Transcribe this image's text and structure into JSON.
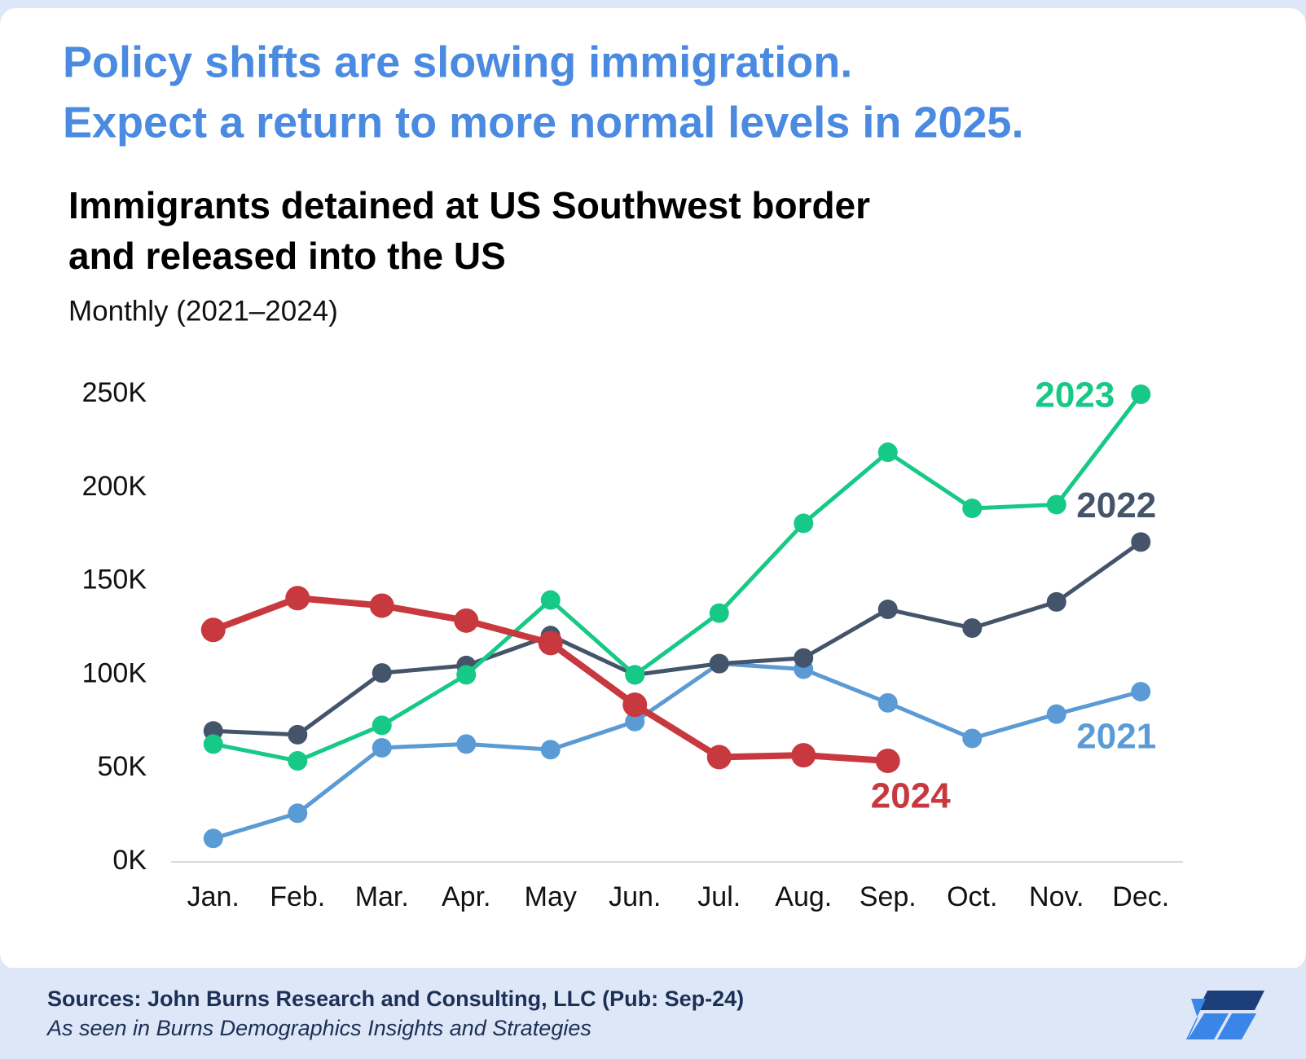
{
  "chart_data": {
    "type": "line",
    "headline": [
      "Policy shifts are slowing immigration.",
      "Expect a return to more normal levels in 2025."
    ],
    "title": [
      "Immigrants detained at US Southwest border",
      "and released into the US"
    ],
    "subtitle": "Monthly (2021–2024)",
    "categories": [
      "Jan.",
      "Feb.",
      "Mar.",
      "Apr.",
      "May",
      "Jun.",
      "Jul.",
      "Aug.",
      "Sep.",
      "Oct.",
      "Nov.",
      "Dec."
    ],
    "series": [
      {
        "name": "2021",
        "color": "#5b9bd5",
        "values": [
          12.5,
          26,
          61,
          63,
          60,
          75,
          106,
          103,
          85,
          66,
          79,
          91
        ]
      },
      {
        "name": "2022",
        "color": "#44546a",
        "values": [
          70,
          68,
          101,
          105,
          121,
          100,
          106,
          109,
          135,
          125,
          139,
          171
        ]
      },
      {
        "name": "2023",
        "color": "#17c987",
        "values": [
          63,
          54,
          73,
          100,
          140,
          100,
          133,
          181,
          219,
          189,
          191,
          250
        ]
      },
      {
        "name": "2024",
        "color": "#c8383f",
        "values": [
          124,
          141,
          137,
          129,
          117,
          84,
          56,
          57,
          54,
          null,
          null,
          null
        ]
      }
    ],
    "ylim": [
      0,
      250
    ],
    "yticks": [
      {
        "value": 0,
        "label": "0K"
      },
      {
        "value": 50,
        "label": "50K"
      },
      {
        "value": 100,
        "label": "100K"
      },
      {
        "value": 150,
        "label": "150K"
      },
      {
        "value": 200,
        "label": "200K"
      },
      {
        "value": 250,
        "label": "250K"
      }
    ],
    "grid": false,
    "source": "Sources: John Burns Research and Consulting, LLC (Pub: Sep-24)",
    "note": "As seen in Burns Demographics Insights and Strategies"
  }
}
